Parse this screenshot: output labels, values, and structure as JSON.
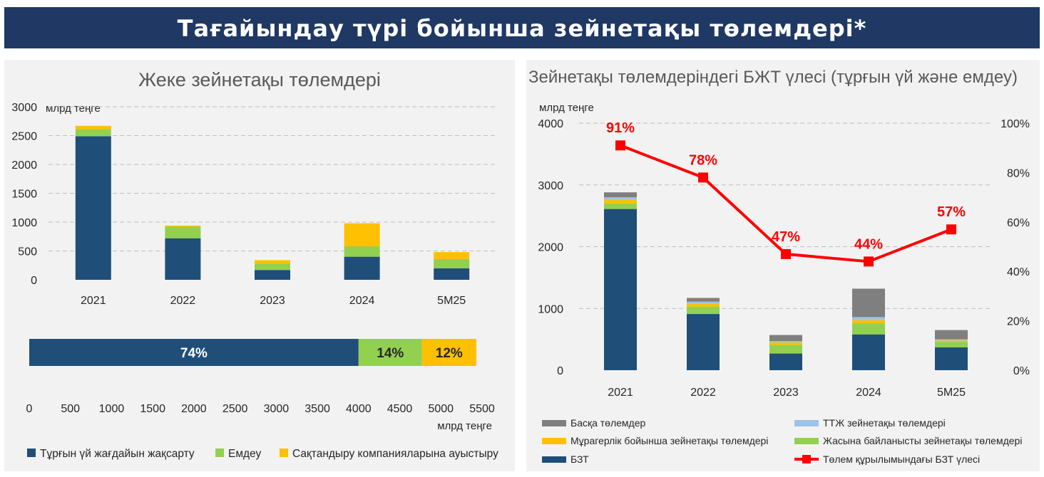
{
  "page_title": "Тағайындау түрі бойынша зейнетақы төлемдері*",
  "colors": {
    "banner": "#1f3864",
    "dark_blue": "#1f4e79",
    "green": "#92d050",
    "yellow": "#ffc000",
    "gray": "#7f7f7f",
    "light_blue": "#9dc3e6",
    "red": "#ff0000"
  },
  "chart_data": [
    {
      "type": "bar",
      "stacked": true,
      "title": "Жеке зейнетақы төлемдері",
      "unit_label": "млрд теңге",
      "categories": [
        "2021",
        "2022",
        "2023",
        "2024",
        "5М25"
      ],
      "y_ticks": [
        "0",
        "500",
        "1000",
        "1500",
        "2000",
        "2500",
        "3000"
      ],
      "ylim": [
        0,
        3000
      ],
      "grid": true,
      "legend_position": "bottom",
      "series": [
        {
          "name": "Тұрғын үй жағдайын жақсарту",
          "color": "#1f4e79",
          "values": [
            2490,
            720,
            170,
            400,
            200
          ]
        },
        {
          "name": "Емдеу",
          "color": "#92d050",
          "values": [
            120,
            200,
            110,
            180,
            160
          ]
        },
        {
          "name": "Сақтандыру компанияларына ауыстыру",
          "color": "#ffc000",
          "values": [
            60,
            20,
            60,
            400,
            120
          ]
        }
      ]
    },
    {
      "type": "bar",
      "orientation": "horizontal",
      "stacked": true,
      "x_unit_label": "млрд теңге",
      "x_ticks": [
        "0",
        "500",
        "1000",
        "1500",
        "2000",
        "2500",
        "3000",
        "3500",
        "4000",
        "4500",
        "5000",
        "5500"
      ],
      "xlim": [
        0,
        5500
      ],
      "segments": [
        {
          "value": 4000,
          "label": "74%",
          "color": "#1f4e79"
        },
        {
          "value": 770,
          "label": "14%",
          "color": "#92d050"
        },
        {
          "value": 660,
          "label": "12%",
          "color": "#ffc000"
        }
      ]
    },
    {
      "type": "bar",
      "stacked": true,
      "title": "Зейнетақы төлемдеріндегі БЖТ үлесі (тұрғын үй және емдеу)",
      "unit_label": "млрд теңге",
      "categories": [
        "2021",
        "2022",
        "2023",
        "2024",
        "5М25"
      ],
      "y_ticks": [
        "0",
        "1000",
        "2000",
        "3000",
        "4000"
      ],
      "ylim": [
        0,
        4000
      ],
      "y2_ticks": [
        "0%",
        "20%",
        "40%",
        "60%",
        "80%",
        "100%"
      ],
      "y2lim": [
        0,
        100
      ],
      "grid": true,
      "legend_position": "bottom",
      "series": [
        {
          "name": "БЗТ",
          "color": "#1f4e79",
          "values": [
            2610,
            910,
            270,
            580,
            370
          ]
        },
        {
          "name": "Жасына байланысты зейнетақы төлемдері",
          "color": "#92d050",
          "values": [
            90,
            120,
            140,
            180,
            90
          ]
        },
        {
          "name": "Мұрагерлік бойынша зейнетақы төлемдері",
          "color": "#ffc000",
          "values": [
            60,
            50,
            40,
            50,
            20
          ]
        },
        {
          "name": "ТТЖ зейнетақы төлемдері",
          "color": "#9dc3e6",
          "values": [
            40,
            30,
            20,
            50,
            20
          ]
        },
        {
          "name": "Басқа төлемдер",
          "color": "#7f7f7f",
          "values": [
            80,
            60,
            100,
            460,
            150
          ]
        }
      ],
      "line_series": {
        "name": "Төлем құрылымындағы БЗТ үлесі",
        "color": "#ff0000",
        "values": [
          91,
          78,
          47,
          44,
          57
        ],
        "labels": [
          "91%",
          "78%",
          "47%",
          "44%",
          "57%"
        ]
      }
    }
  ]
}
